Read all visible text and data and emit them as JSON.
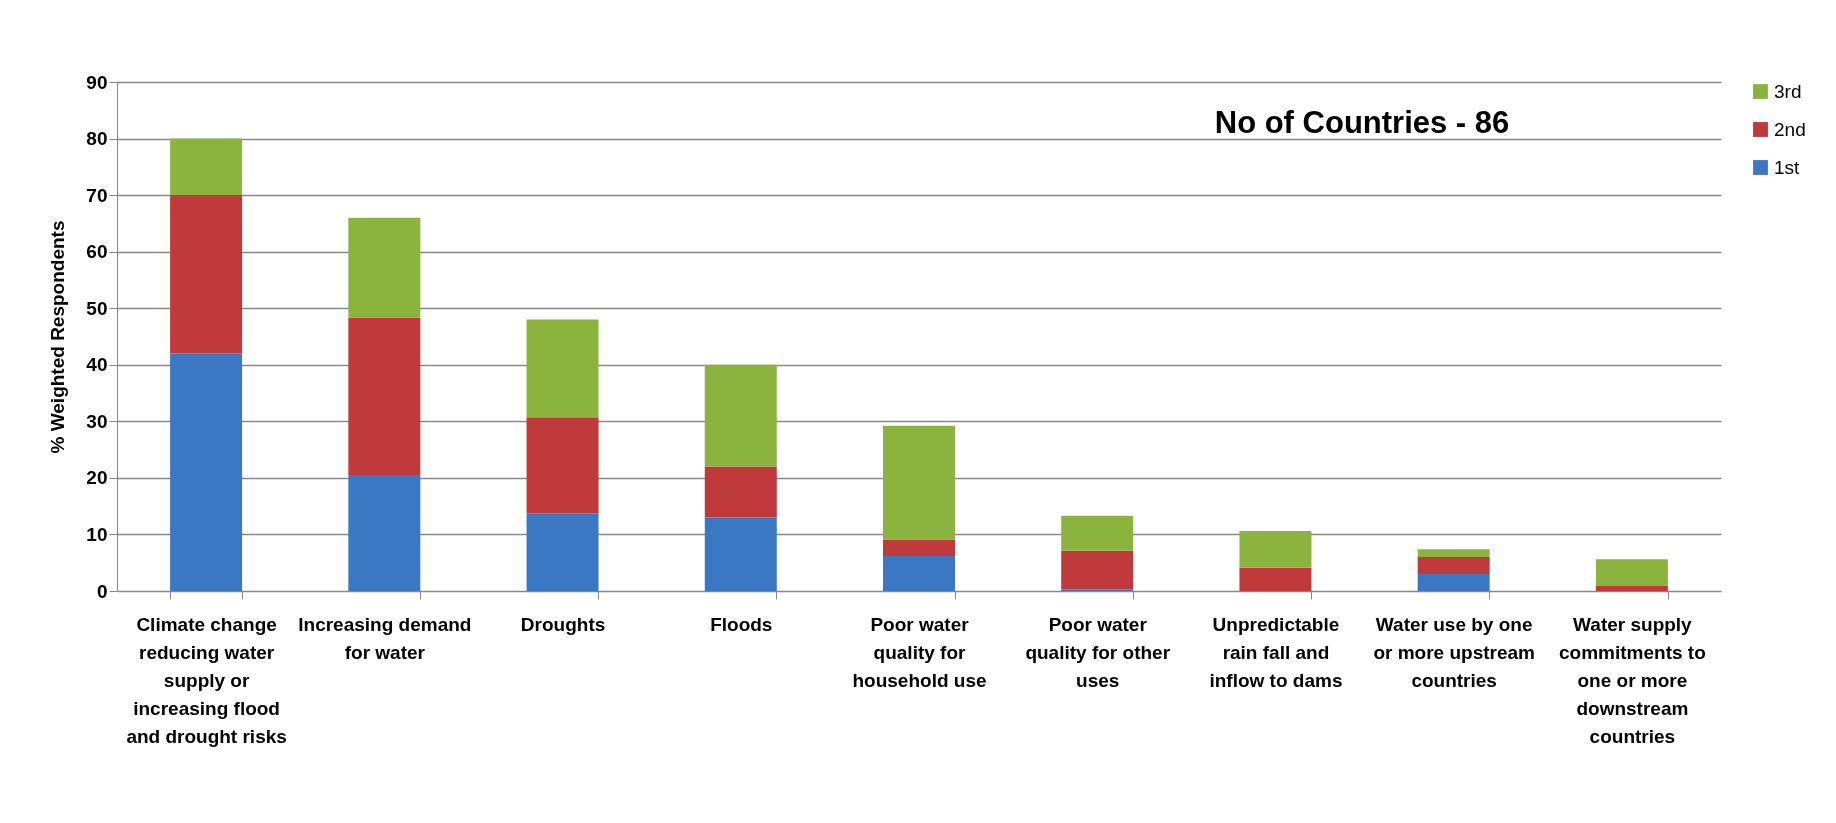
{
  "chart_data": {
    "type": "bar",
    "stacked": true,
    "ylabel": "% Weighted Respondents",
    "annotations": [
      "No of Countries - 86"
    ],
    "categories": [
      "Climate change reducing water supply or increasing flood and drought risks",
      "Increasing demand for water",
      "Droughts",
      "Floods",
      "Poor water quality for household use",
      "Poor water quality for other uses",
      "Unpredictable rain fall and inflow to dams",
      "Water use by one or more upstream countries",
      "Water supply commitments to one or more downstream countries"
    ],
    "series": [
      {
        "name": "1st",
        "color": "#3a78c4",
        "values": [
          42,
          20.5,
          13.7,
          13,
          6.2,
          0.3,
          0,
          3,
          0
        ]
      },
      {
        "name": "2nd",
        "color": "#c0393b",
        "values": [
          28,
          27.8,
          17,
          9,
          2.9,
          6.8,
          4.1,
          3,
          0.9
        ]
      },
      {
        "name": "3rd",
        "color": "#8ab43e",
        "values": [
          10,
          17.7,
          17.3,
          18,
          20.1,
          6.2,
          6.5,
          1.4,
          4.7
        ]
      }
    ],
    "ylim": [
      0,
      90
    ],
    "yticks": [
      0,
      10,
      20,
      30,
      40,
      50,
      60,
      70,
      80,
      90
    ],
    "grid": "y",
    "legend": "right"
  }
}
